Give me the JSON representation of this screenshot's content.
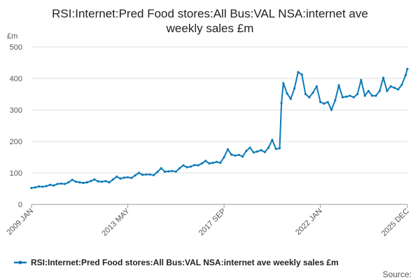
{
  "chart_data": {
    "type": "line",
    "title": "RSI:Internet:Pred Food stores:All Bus:VAL NSA:internet ave weekly sales £m",
    "title_lines": [
      "RSI:Internet:Pred Food stores:All Bus:VAL NSA:internet ave",
      "weekly sales £m"
    ],
    "unit_label": "£m",
    "ylim": [
      0,
      500
    ],
    "yticks": [
      0,
      100,
      200,
      300,
      400,
      500
    ],
    "x_start": "2009-01",
    "x_end": "2025-12",
    "xticks": [
      {
        "label": "2009 JAN",
        "date": "2009-01"
      },
      {
        "label": "2013 MAY",
        "date": "2013-05"
      },
      {
        "label": "2017 SEP",
        "date": "2017-09"
      },
      {
        "label": "2022 JAN",
        "date": "2022-01"
      },
      {
        "label": "2025 DEC",
        "date": "2025-12"
      }
    ],
    "grid": true,
    "legend_position": "bottom",
    "series": [
      {
        "name": "RSI:Internet:Pred Food stores:All Bus:VAL NSA:internet ave weekly sales £m",
        "color": "#0d7ab8",
        "points": [
          [
            "2009-01",
            52
          ],
          [
            "2009-03",
            54
          ],
          [
            "2009-05",
            57
          ],
          [
            "2009-07",
            56
          ],
          [
            "2009-09",
            58
          ],
          [
            "2009-11",
            62
          ],
          [
            "2010-01",
            60
          ],
          [
            "2010-03",
            65
          ],
          [
            "2010-05",
            66
          ],
          [
            "2010-07",
            65
          ],
          [
            "2010-09",
            70
          ],
          [
            "2010-11",
            78
          ],
          [
            "2011-01",
            72
          ],
          [
            "2011-03",
            70
          ],
          [
            "2011-05",
            68
          ],
          [
            "2011-07",
            70
          ],
          [
            "2011-09",
            74
          ],
          [
            "2011-11",
            79
          ],
          [
            "2012-01",
            73
          ],
          [
            "2012-03",
            72
          ],
          [
            "2012-05",
            74
          ],
          [
            "2012-07",
            70
          ],
          [
            "2012-09",
            79
          ],
          [
            "2012-11",
            88
          ],
          [
            "2013-01",
            82
          ],
          [
            "2013-03",
            85
          ],
          [
            "2013-05",
            86
          ],
          [
            "2013-07",
            84
          ],
          [
            "2013-09",
            92
          ],
          [
            "2013-11",
            100
          ],
          [
            "2014-01",
            94
          ],
          [
            "2014-03",
            95
          ],
          [
            "2014-05",
            95
          ],
          [
            "2014-07",
            93
          ],
          [
            "2014-09",
            103
          ],
          [
            "2014-11",
            115
          ],
          [
            "2015-01",
            104
          ],
          [
            "2015-03",
            105
          ],
          [
            "2015-05",
            106
          ],
          [
            "2015-07",
            104
          ],
          [
            "2015-09",
            115
          ],
          [
            "2015-11",
            124
          ],
          [
            "2016-01",
            118
          ],
          [
            "2016-03",
            120
          ],
          [
            "2016-05",
            125
          ],
          [
            "2016-07",
            124
          ],
          [
            "2016-09",
            130
          ],
          [
            "2016-11",
            138
          ],
          [
            "2017-01",
            130
          ],
          [
            "2017-03",
            132
          ],
          [
            "2017-05",
            135
          ],
          [
            "2017-07",
            132
          ],
          [
            "2017-09",
            150
          ],
          [
            "2017-11",
            175
          ],
          [
            "2018-01",
            158
          ],
          [
            "2018-03",
            155
          ],
          [
            "2018-05",
            157
          ],
          [
            "2018-07",
            152
          ],
          [
            "2018-09",
            170
          ],
          [
            "2018-11",
            180
          ],
          [
            "2019-01",
            165
          ],
          [
            "2019-03",
            168
          ],
          [
            "2019-05",
            172
          ],
          [
            "2019-07",
            166
          ],
          [
            "2019-09",
            180
          ],
          [
            "2019-11",
            205
          ],
          [
            "2020-01",
            176
          ],
          [
            "2020-03",
            178
          ],
          [
            "2020-04",
            322
          ],
          [
            "2020-05",
            385
          ],
          [
            "2020-07",
            352
          ],
          [
            "2020-09",
            335
          ],
          [
            "2020-11",
            368
          ],
          [
            "2021-01",
            420
          ],
          [
            "2021-03",
            412
          ],
          [
            "2021-05",
            350
          ],
          [
            "2021-07",
            340
          ],
          [
            "2021-09",
            355
          ],
          [
            "2021-11",
            375
          ],
          [
            "2022-01",
            325
          ],
          [
            "2022-03",
            320
          ],
          [
            "2022-05",
            325
          ],
          [
            "2022-07",
            300
          ],
          [
            "2022-09",
            330
          ],
          [
            "2022-11",
            378
          ],
          [
            "2023-01",
            340
          ],
          [
            "2023-03",
            342
          ],
          [
            "2023-05",
            345
          ],
          [
            "2023-07",
            340
          ],
          [
            "2023-09",
            350
          ],
          [
            "2023-11",
            395
          ],
          [
            "2024-01",
            345
          ],
          [
            "2024-03",
            360
          ],
          [
            "2024-05",
            345
          ],
          [
            "2024-07",
            345
          ],
          [
            "2024-09",
            360
          ],
          [
            "2024-11",
            402
          ],
          [
            "2025-01",
            360
          ],
          [
            "2025-03",
            375
          ],
          [
            "2025-05",
            370
          ],
          [
            "2025-07",
            365
          ],
          [
            "2025-09",
            380
          ],
          [
            "2025-11",
            410
          ],
          [
            "2025-12",
            430
          ]
        ]
      }
    ]
  },
  "source_label": "Source:"
}
